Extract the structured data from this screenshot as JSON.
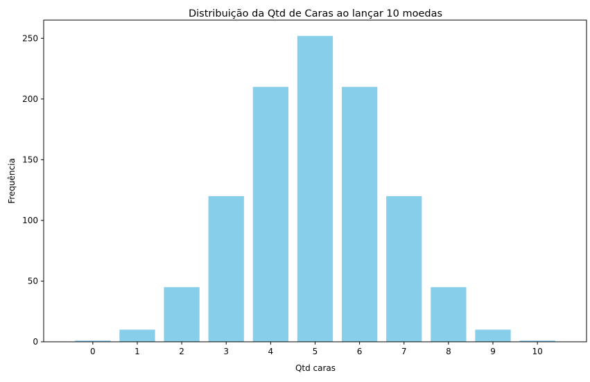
{
  "chart_data": {
    "type": "bar",
    "title": "Distribuição da Qtd de Caras ao lançar 10 moedas",
    "xlabel": "Qtd caras",
    "ylabel": "Frequência",
    "categories": [
      "0",
      "1",
      "2",
      "3",
      "4",
      "5",
      "6",
      "7",
      "8",
      "9",
      "10"
    ],
    "values": [
      1,
      10,
      45,
      120,
      210,
      252,
      210,
      120,
      45,
      10,
      1
    ],
    "ylim": [
      0,
      265
    ],
    "yticks": [
      0,
      50,
      100,
      150,
      200,
      250
    ],
    "grid": false,
    "bar_color": "#87CEEB"
  }
}
